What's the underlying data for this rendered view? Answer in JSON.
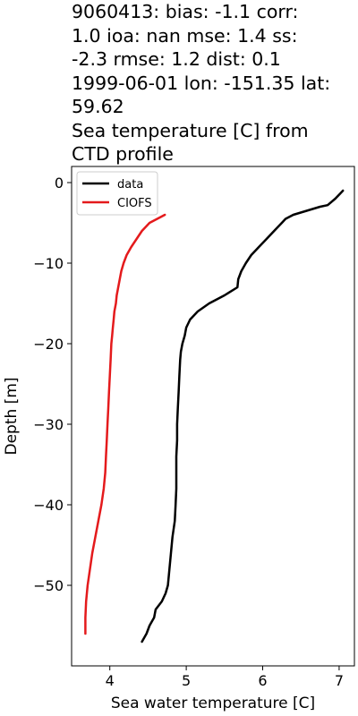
{
  "title_lines": [
    "9060413: bias: -1.1  corr:",
    "1.0  ioa: nan  mse: 1.4  ss:",
    "-2.3  rmse: 1.2  dist: 0.1",
    "1999-06-01 lon: -151.35 lat:",
    "59.62",
    "Sea temperature [C] from",
    "CTD profile"
  ],
  "chart_data": {
    "type": "line",
    "title": "9060413: bias: -1.1  corr: 1.0  ioa: nan  mse: 1.4  ss: -2.3  rmse: 1.2  dist: 0.1 1999-06-01 lon: -151.35 lat: 59.62 Sea temperature [C] from CTD profile",
    "xlabel": "Sea water temperature [C]",
    "ylabel": "Depth [m]",
    "xlim": [
      3.5,
      7.2
    ],
    "ylim": [
      -60,
      2
    ],
    "xticks": [
      4,
      5,
      6,
      7
    ],
    "yticks": [
      0,
      -10,
      -20,
      -30,
      -40,
      -50
    ],
    "ytick_labels": [
      "0",
      "−10",
      "−20",
      "−30",
      "−40",
      "−50"
    ],
    "grid": false,
    "legend_position": "top-left",
    "series": [
      {
        "name": "data",
        "color": "#000000",
        "points": [
          [
            7.05,
            -1
          ],
          [
            6.95,
            -2
          ],
          [
            6.85,
            -2.8
          ],
          [
            6.75,
            -3
          ],
          [
            6.4,
            -4
          ],
          [
            6.3,
            -4.5
          ],
          [
            6.25,
            -5
          ],
          [
            6.15,
            -6
          ],
          [
            6.05,
            -7
          ],
          [
            5.95,
            -8
          ],
          [
            5.85,
            -9
          ],
          [
            5.78,
            -10
          ],
          [
            5.72,
            -11
          ],
          [
            5.68,
            -12
          ],
          [
            5.67,
            -13
          ],
          [
            5.5,
            -14
          ],
          [
            5.3,
            -15
          ],
          [
            5.15,
            -16
          ],
          [
            5.05,
            -17
          ],
          [
            5.0,
            -18
          ],
          [
            4.98,
            -19
          ],
          [
            4.95,
            -20
          ],
          [
            4.93,
            -21
          ],
          [
            4.92,
            -22
          ],
          [
            4.91,
            -24
          ],
          [
            4.9,
            -26
          ],
          [
            4.89,
            -28
          ],
          [
            4.88,
            -30
          ],
          [
            4.88,
            -32
          ],
          [
            4.87,
            -34
          ],
          [
            4.87,
            -36
          ],
          [
            4.87,
            -38
          ],
          [
            4.86,
            -40
          ],
          [
            4.85,
            -42
          ],
          [
            4.82,
            -44
          ],
          [
            4.8,
            -46
          ],
          [
            4.78,
            -48
          ],
          [
            4.76,
            -50
          ],
          [
            4.73,
            -51
          ],
          [
            4.68,
            -52
          ],
          [
            4.6,
            -53
          ],
          [
            4.58,
            -54
          ],
          [
            4.52,
            -55
          ],
          [
            4.48,
            -56
          ],
          [
            4.42,
            -57
          ]
        ]
      },
      {
        "name": "CIOFS",
        "color": "#e41a1c",
        "points": [
          [
            4.72,
            -4
          ],
          [
            4.62,
            -4.5
          ],
          [
            4.52,
            -5
          ],
          [
            4.42,
            -6
          ],
          [
            4.35,
            -7
          ],
          [
            4.28,
            -8
          ],
          [
            4.22,
            -9
          ],
          [
            4.18,
            -10
          ],
          [
            4.15,
            -11
          ],
          [
            4.13,
            -12
          ],
          [
            4.11,
            -13
          ],
          [
            4.09,
            -14
          ],
          [
            4.08,
            -15
          ],
          [
            4.06,
            -16
          ],
          [
            4.05,
            -17
          ],
          [
            4.04,
            -18
          ],
          [
            4.03,
            -19
          ],
          [
            4.02,
            -20
          ],
          [
            4.01,
            -22
          ],
          [
            4.0,
            -24
          ],
          [
            3.99,
            -26
          ],
          [
            3.98,
            -28
          ],
          [
            3.97,
            -30
          ],
          [
            3.96,
            -32
          ],
          [
            3.95,
            -34
          ],
          [
            3.94,
            -36
          ],
          [
            3.92,
            -38
          ],
          [
            3.89,
            -40
          ],
          [
            3.85,
            -42
          ],
          [
            3.81,
            -44
          ],
          [
            3.77,
            -46
          ],
          [
            3.74,
            -48
          ],
          [
            3.71,
            -50
          ],
          [
            3.69,
            -52
          ],
          [
            3.68,
            -54
          ],
          [
            3.68,
            -56
          ]
        ]
      }
    ]
  }
}
